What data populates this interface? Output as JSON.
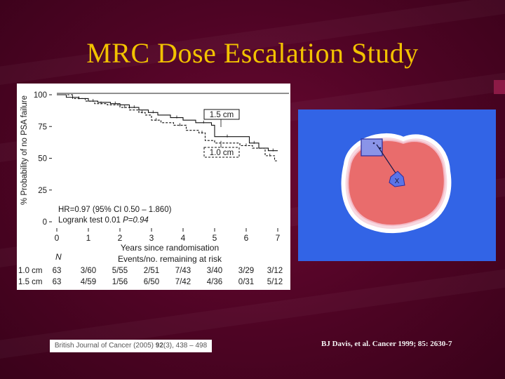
{
  "slide": {
    "title": "MRC Dose Escalation Study",
    "citation_left_parts": [
      "British Journal of Cancer (2005) ",
      "92",
      "(3), 438 – 498"
    ],
    "citation_right": "BJ Davis, et al.  Cancer 1999; 85: 2630-7"
  },
  "colors": {
    "title": "#f2c200",
    "background": "#4e0424",
    "prostate_fill": "#e96c6c",
    "panel_blue": "#3264e6"
  },
  "chart_data": {
    "type": "line",
    "subtype": "kaplan-meier step curve",
    "xlabel": "Years since randomisation",
    "ylabel": "% Probability of no PSA failure",
    "xlim": [
      0,
      7
    ],
    "ylim": [
      0,
      100
    ],
    "x_ticks": [
      "0",
      "1",
      "2",
      "3",
      "4",
      "5",
      "6",
      "7"
    ],
    "y_ticks": [
      "100",
      "75",
      "50",
      "25",
      "0"
    ],
    "series": [
      {
        "name": "1.5 cm",
        "style": "solid",
        "x": [
          0,
          0.3,
          0.7,
          1.0,
          1.3,
          1.7,
          2.0,
          2.3,
          2.6,
          2.9,
          3.2,
          3.6,
          4.0,
          4.4,
          4.9,
          5.0,
          5.8,
          6.1,
          6.4,
          6.7,
          7.0
        ],
        "y": [
          100,
          98,
          97,
          95,
          94,
          93,
          92,
          90,
          88,
          86,
          84,
          82,
          80,
          78,
          76,
          67,
          67,
          62,
          58,
          56,
          56
        ]
      },
      {
        "name": "1.0 cm",
        "style": "dashed",
        "x": [
          0,
          0.5,
          0.9,
          1.2,
          1.6,
          2.0,
          2.3,
          2.6,
          2.8,
          3.0,
          3.3,
          3.7,
          4.1,
          4.5,
          4.7,
          5.0,
          5.4,
          5.8,
          6.2,
          6.6,
          6.9,
          7.0
        ],
        "y": [
          100,
          97,
          95,
          93,
          92,
          90,
          88,
          86,
          84,
          80,
          78,
          76,
          72,
          70,
          64,
          62,
          62,
          60,
          58,
          52,
          48,
          48
        ]
      }
    ],
    "series_labels": [
      "1.5 cm",
      "1.0 cm"
    ],
    "annotations": {
      "hr_text": "HR=0.97 (95% CI 0.50 – 1.860)",
      "logrank_prefix": "Logrank test 0.01 ",
      "logrank_p": "P=0.94"
    },
    "risk_table": {
      "n_label": "N",
      "caption": "Events/no. remaining at risk",
      "rows": [
        {
          "label": "1.0 cm",
          "n": "63",
          "cells": [
            "3/60",
            "5/55",
            "2/51",
            "7/43",
            "3/40",
            "3/29",
            "3/12"
          ]
        },
        {
          "label": "1.5 cm",
          "n": "63",
          "cells": [
            "4/59",
            "1/56",
            "6/50",
            "7/42",
            "4/36",
            "0/31",
            "5/12"
          ]
        }
      ]
    }
  },
  "image_panel": {
    "marker_label": "X"
  }
}
